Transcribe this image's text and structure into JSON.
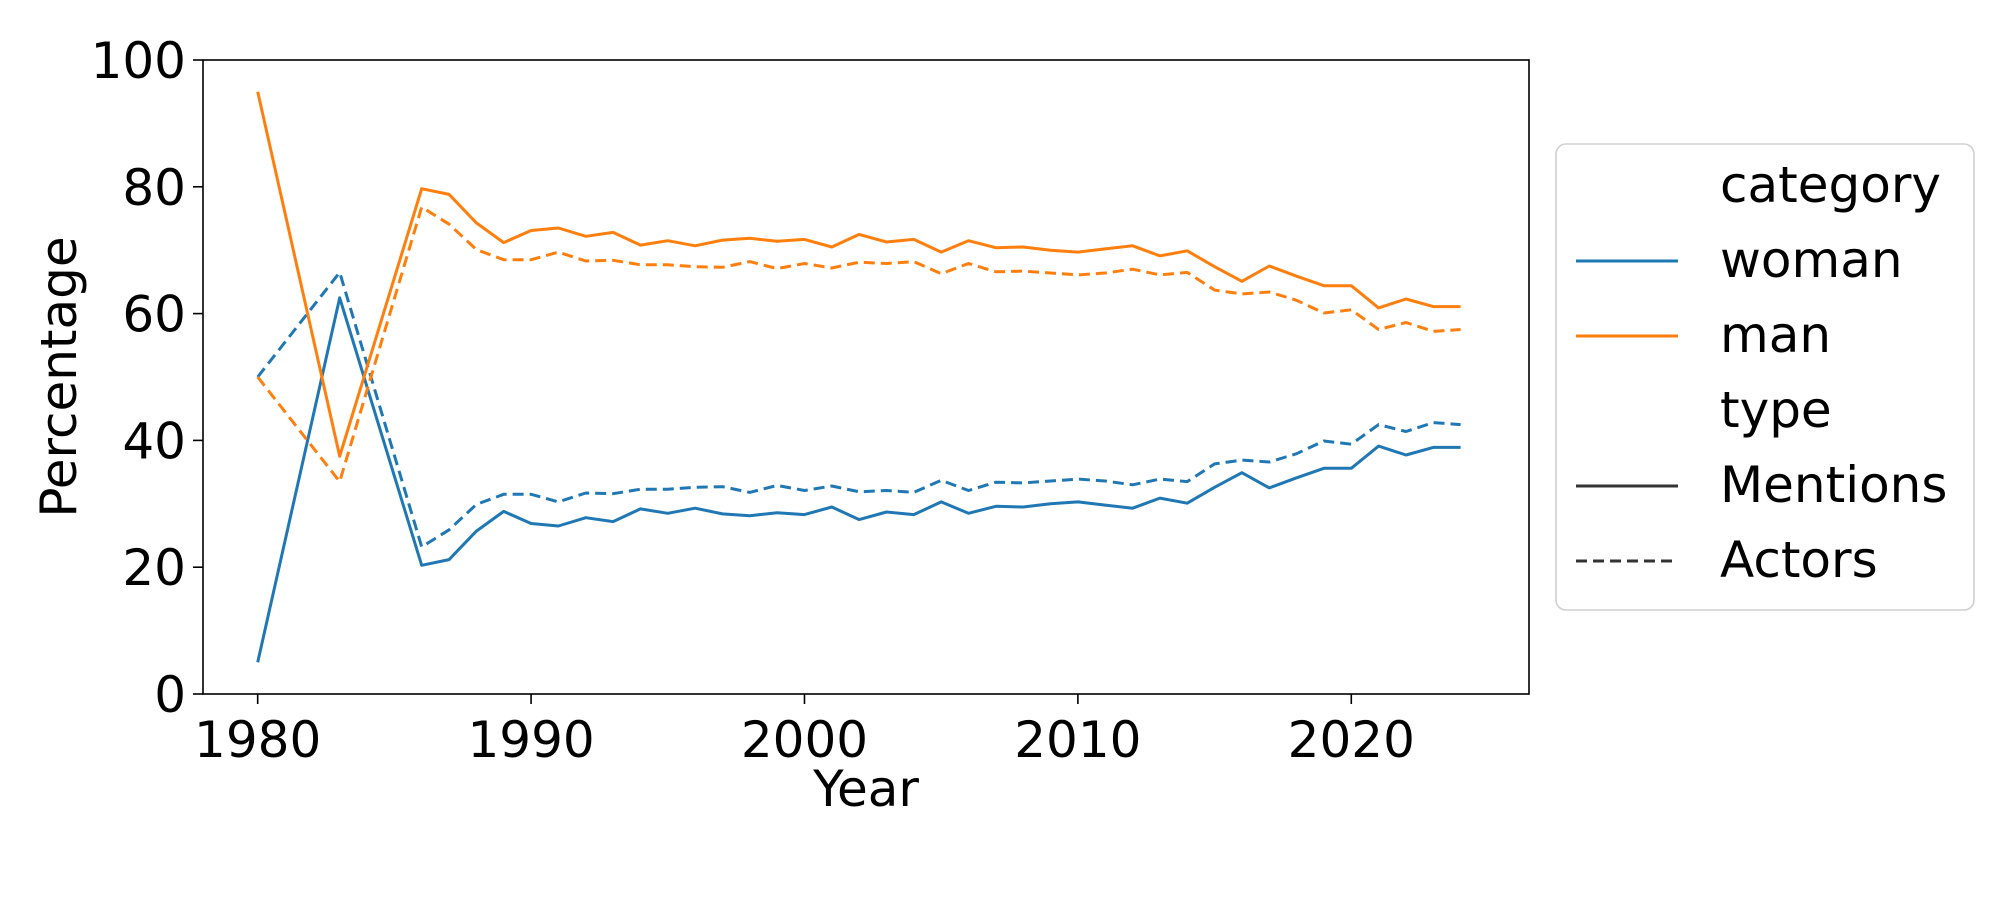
{
  "chart_data": {
    "type": "line",
    "xlabel": "Year",
    "ylabel": "Percentage",
    "xlim": [
      1978,
      2026.5
    ],
    "ylim": [
      0,
      100
    ],
    "xticks": [
      1980,
      1990,
      2000,
      2010,
      2020
    ],
    "yticks": [
      0,
      20,
      40,
      60,
      80,
      100
    ],
    "grid": false,
    "legend_position": "right, outside plot",
    "legend": {
      "category_title": "category",
      "type_title": "type",
      "entries": [
        {
          "label": "woman",
          "color": "#1f77b4",
          "dash": "solid"
        },
        {
          "label": "man",
          "color": "#ff7f0e",
          "dash": "solid"
        },
        {
          "label": "Mentions",
          "color": "#333333",
          "dash": "solid"
        },
        {
          "label": "Actors",
          "color": "#333333",
          "dash": "dashed"
        }
      ]
    },
    "x": [
      1980,
      1983,
      1986,
      1987,
      1988,
      1989,
      1990,
      1991,
      1992,
      1993,
      1994,
      1995,
      1996,
      1997,
      1998,
      1999,
      2000,
      2001,
      2002,
      2003,
      2004,
      2005,
      2006,
      2007,
      2008,
      2009,
      2010,
      2011,
      2012,
      2013,
      2014,
      2015,
      2016,
      2017,
      2018,
      2019,
      2020,
      2021,
      2022,
      2023,
      2024
    ],
    "series": [
      {
        "category": "woman",
        "type": "Mentions",
        "color": "#1f77b4",
        "dash": "solid",
        "values": [
          5,
          62.5,
          20.3,
          21.2,
          25.7,
          28.8,
          26.9,
          26.5,
          27.8,
          27.2,
          29.2,
          28.5,
          29.3,
          28.4,
          28.1,
          28.6,
          28.3,
          29.5,
          27.5,
          28.7,
          28.3,
          30.3,
          28.5,
          29.6,
          29.5,
          30.0,
          30.3,
          29.8,
          29.3,
          30.9,
          30.1,
          32.6,
          34.9,
          32.5,
          34.1,
          35.6,
          35.6,
          39.1,
          37.7,
          38.9,
          38.9
        ]
      },
      {
        "category": "woman",
        "type": "Actors",
        "color": "#1f77b4",
        "dash": "dashed",
        "values": [
          50,
          66.5,
          23.2,
          25.9,
          29.9,
          31.5,
          31.5,
          30.3,
          31.7,
          31.6,
          32.3,
          32.3,
          32.6,
          32.7,
          31.8,
          32.9,
          32.1,
          32.8,
          31.9,
          32.1,
          31.8,
          33.7,
          32.1,
          33.4,
          33.3,
          33.6,
          33.9,
          33.6,
          33.0,
          33.9,
          33.5,
          36.3,
          36.9,
          36.6,
          37.9,
          39.9,
          39.4,
          42.5,
          41.4,
          42.8,
          42.5
        ]
      },
      {
        "category": "man",
        "type": "Mentions",
        "color": "#ff7f0e",
        "dash": "solid",
        "values": [
          95,
          37.5,
          79.7,
          78.8,
          74.3,
          71.2,
          73.1,
          73.5,
          72.2,
          72.8,
          70.8,
          71.5,
          70.7,
          71.6,
          71.9,
          71.4,
          71.7,
          70.5,
          72.5,
          71.3,
          71.7,
          69.7,
          71.5,
          70.4,
          70.5,
          70.0,
          69.7,
          70.2,
          70.7,
          69.1,
          69.9,
          67.4,
          65.1,
          67.5,
          65.9,
          64.4,
          64.4,
          60.9,
          62.3,
          61.1,
          61.1
        ]
      },
      {
        "category": "man",
        "type": "Actors",
        "color": "#ff7f0e",
        "dash": "dashed",
        "values": [
          50,
          33.5,
          76.8,
          74.1,
          70.1,
          68.5,
          68.5,
          69.7,
          68.3,
          68.4,
          67.7,
          67.7,
          67.4,
          67.3,
          68.2,
          67.1,
          67.9,
          67.2,
          68.1,
          67.9,
          68.2,
          66.3,
          67.9,
          66.6,
          66.7,
          66.4,
          66.1,
          66.4,
          67.0,
          66.1,
          66.5,
          63.7,
          63.1,
          63.4,
          62.1,
          60.1,
          60.6,
          57.5,
          58.6,
          57.2,
          57.5
        ]
      }
    ]
  }
}
